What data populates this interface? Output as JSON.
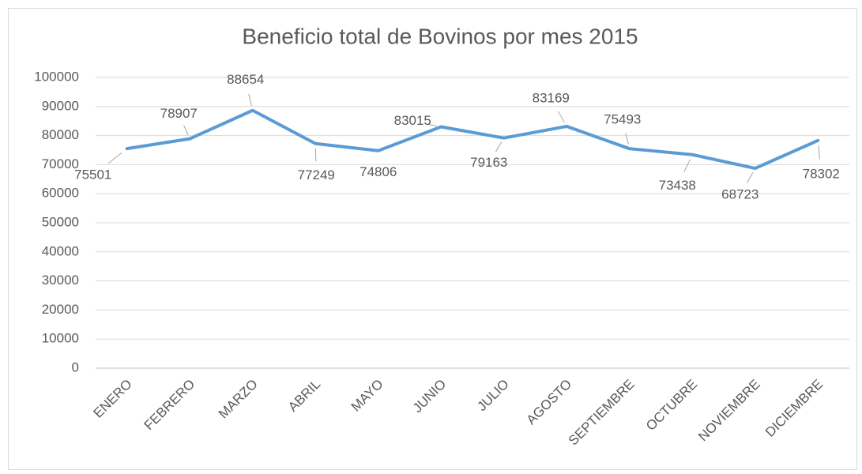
{
  "chart_data": {
    "type": "line",
    "title": "Beneficio total de Bovinos por mes 2015",
    "categories": [
      "ENERO",
      "FEBRERO",
      "MARZO",
      "ABRIL",
      "MAYO",
      "JUNIO",
      "JULIO",
      "AGOSTO",
      "SEPTIEMBRE",
      "OCTUBRE",
      "NOVIEMBRE",
      "DICIEMBRE"
    ],
    "series": [
      {
        "name": "Beneficio",
        "color": "#5b9bd5",
        "values": [
          75501,
          78907,
          88654,
          77249,
          74806,
          83015,
          79163,
          83169,
          75493,
          73438,
          68723,
          78302
        ]
      }
    ],
    "ylim": [
      0,
      100000
    ],
    "yticks": [
      0,
      10000,
      20000,
      30000,
      40000,
      50000,
      60000,
      70000,
      80000,
      90000,
      100000
    ],
    "grid": true
  }
}
